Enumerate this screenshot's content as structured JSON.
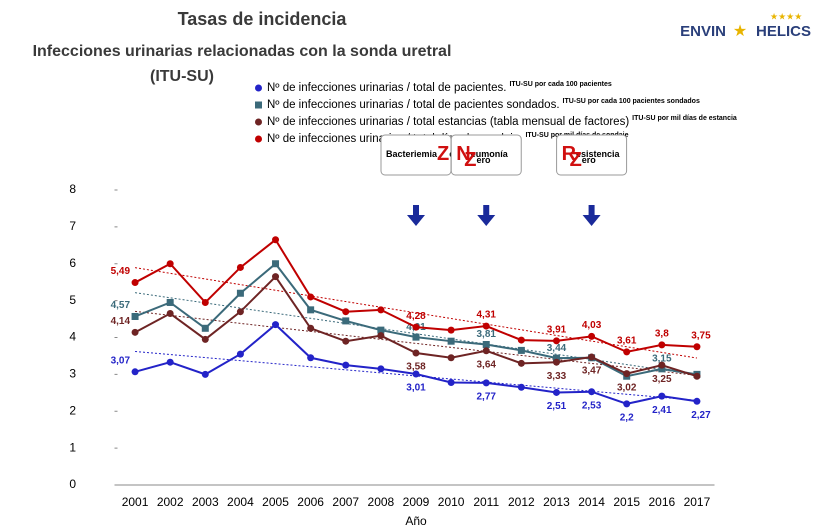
{
  "chart_data": {
    "type": "line",
    "title": "Tasas de incidencia",
    "subtitle": "Infecciones urinarias relacionadas con la sonda uretral",
    "subtitle2": "(ITU-SU)",
    "logo": [
      "ENVIN",
      "HELICS"
    ],
    "x_label": "Año",
    "categories": [
      "2001",
      "2002",
      "2003",
      "2004",
      "2005",
      "2006",
      "2007",
      "2008",
      "2009",
      "2010",
      "2011",
      "2012",
      "2013",
      "2014",
      "2015",
      "2016",
      "2017"
    ],
    "ylim": [
      0,
      8
    ],
    "yticks": [
      0,
      1,
      2,
      3,
      4,
      5,
      6,
      7,
      8
    ],
    "series": [
      {
        "name": "Nº de infecciones urinarias / total de pacientes.",
        "note": "ITU-SU  por cada 100 pacientes",
        "color": "#2323c8",
        "marker": "circle",
        "values": [
          3.07,
          3.33,
          3.0,
          3.55,
          4.35,
          3.45,
          3.25,
          3.15,
          3.01,
          2.78,
          2.77,
          2.65,
          2.51,
          2.53,
          2.2,
          2.41,
          2.27
        ],
        "value_labels": [
          "3,07",
          null,
          null,
          null,
          null,
          null,
          null,
          null,
          "3,01",
          null,
          "2,77",
          null,
          "2,51",
          "2,53",
          "2,2",
          "2,41",
          "2,27"
        ]
      },
      {
        "name": "Nº de infecciones urinarias / total de pacientes sondados.",
        "note": "ITU-SU  por cada 100 pacientes sondados",
        "color": "#3b6a7a",
        "marker": "square",
        "values": [
          4.57,
          4.95,
          4.25,
          5.2,
          6.0,
          4.75,
          4.45,
          4.2,
          4.01,
          3.9,
          3.81,
          3.65,
          3.44,
          3.45,
          2.95,
          3.15,
          3.0
        ],
        "value_labels": [
          "4,57",
          null,
          null,
          null,
          null,
          null,
          null,
          null,
          "4,01",
          null,
          "3,81",
          null,
          "3,44",
          null,
          null,
          "3,15",
          null
        ]
      },
      {
        "name": "Nº de infecciones urinarias / total estancias (tabla mensual de factores)",
        "note": "ITU-SU  por mil días de estancia",
        "color": "#6e2424",
        "marker": "circle",
        "values": [
          4.14,
          4.65,
          3.95,
          4.7,
          5.65,
          4.25,
          3.9,
          4.05,
          3.58,
          3.45,
          3.64,
          3.3,
          3.33,
          3.47,
          3.02,
          3.25,
          2.95
        ],
        "value_labels": [
          "4,14",
          null,
          null,
          null,
          null,
          null,
          null,
          null,
          "3,58",
          null,
          "3,64",
          null,
          "3,33",
          "3,47",
          "3,02",
          "3,25",
          null
        ]
      },
      {
        "name": "Nº de infecciones urinarias / total días de sondaje.",
        "note": "ITU-SU por mil días de sondaje",
        "color": "#c00000",
        "marker": "circle",
        "values": [
          5.49,
          6.0,
          4.95,
          5.9,
          6.65,
          5.1,
          4.7,
          4.75,
          4.28,
          4.2,
          4.31,
          3.93,
          3.91,
          4.03,
          3.61,
          3.8,
          3.75
        ],
        "value_labels": [
          "5,49",
          null,
          null,
          null,
          null,
          null,
          null,
          null,
          "4,28",
          null,
          "4,31",
          null,
          "3,91",
          "4,03",
          "3,61",
          "3,8",
          "3,75"
        ]
      }
    ],
    "annotations": [
      {
        "x": "2009",
        "parts": [
          "Bacteriemia",
          "Z",
          "ero"
        ]
      },
      {
        "x": "2011",
        "parts": [
          "N",
          "eumonía",
          "Z",
          "ero"
        ]
      },
      {
        "x": "2014",
        "parts": [
          "R",
          "esistencia",
          "Z",
          "ero"
        ]
      }
    ]
  }
}
